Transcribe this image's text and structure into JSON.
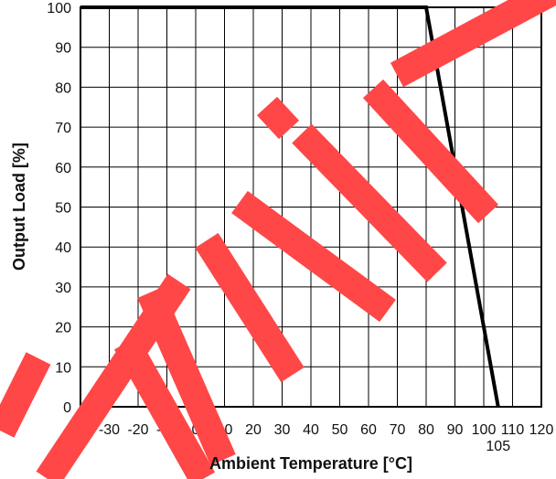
{
  "chart_data": {
    "type": "line",
    "xlabel": "Ambient Temperature [°C]",
    "ylabel": "Output Load [%]",
    "xlim": [
      -40,
      120
    ],
    "ylim": [
      0,
      100
    ],
    "x_ticks": [
      -40,
      -30,
      -20,
      -10,
      0,
      10,
      20,
      30,
      40,
      50,
      60,
      70,
      80,
      90,
      100,
      110,
      120
    ],
    "x_tick_labels": [
      "-40",
      "-30",
      "-20",
      "-10",
      "0",
      "10",
      "20",
      "30",
      "40",
      "50",
      "60",
      "70",
      "80",
      "90",
      "100",
      "110",
      "120"
    ],
    "y_ticks": [
      0,
      10,
      20,
      30,
      40,
      50,
      60,
      70,
      80,
      90,
      100
    ],
    "y_tick_labels": [
      "0",
      "10",
      "20",
      "30",
      "40",
      "50",
      "60",
      "70",
      "80",
      "90",
      "100"
    ],
    "extra_x_annotation": {
      "x": 105,
      "label": "105"
    },
    "grid": true,
    "series": [
      {
        "x": [
          -40,
          80,
          105
        ],
        "y": [
          100,
          100,
          0
        ],
        "color": "#000000"
      }
    ],
    "watermark_text": "limin",
    "watermark_color": "#ff4747"
  }
}
